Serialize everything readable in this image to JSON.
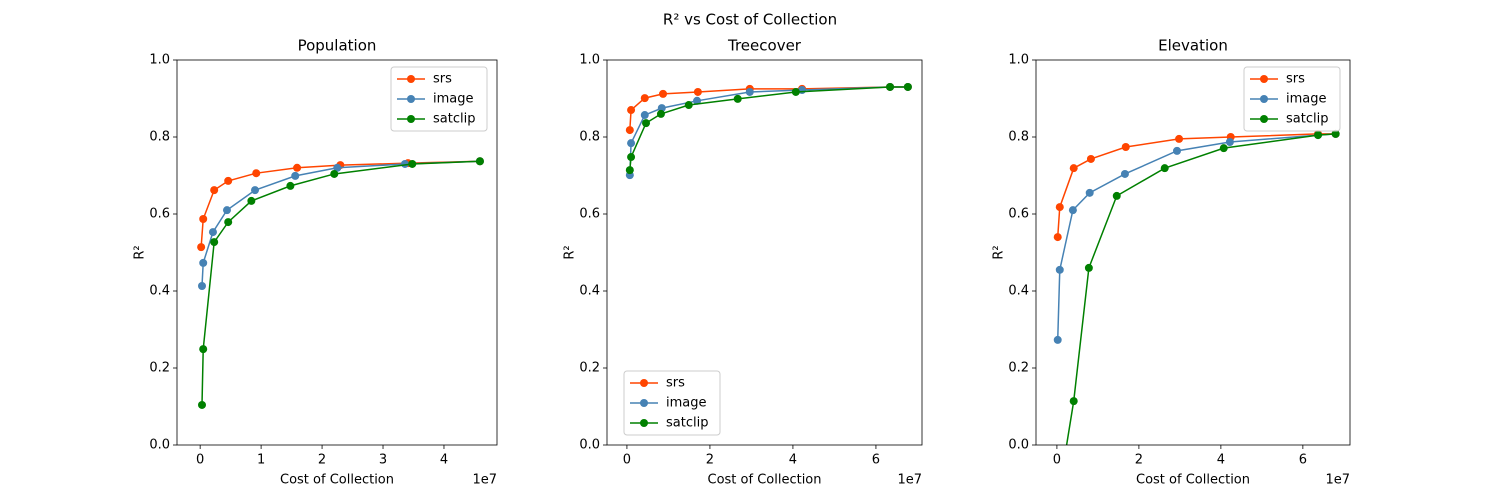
{
  "title": "R² vs Cost of Collection",
  "chart_data": [
    {
      "type": "line",
      "title": "Population",
      "xlabel": "Cost of Collection",
      "ylabel": "R²",
      "x_offset_label": "1e7",
      "xlim": [
        -0.38,
        4.87
      ],
      "ylim": [
        0,
        1
      ],
      "xticks": [
        0,
        1,
        2,
        3,
        4
      ],
      "yticks": [
        {
          "value": 0,
          "label": "0.0"
        },
        {
          "value": 0.2,
          "label": "0.2"
        },
        {
          "value": 0.4,
          "label": "0.4"
        },
        {
          "value": 0.6,
          "label": "0.6"
        },
        {
          "value": 0.8,
          "label": "0.8"
        },
        {
          "value": 1,
          "label": "1.0"
        }
      ],
      "legend": "upper right",
      "series": [
        {
          "name": "srs",
          "color": "#ff4500",
          "x": [
            0.016,
            0.05,
            0.23,
            0.46,
            0.92,
            1.59,
            2.3,
            3.41,
            4.59
          ],
          "values": [
            0.514,
            0.587,
            0.662,
            0.686,
            0.706,
            0.72,
            0.727,
            0.732,
            0.737
          ]
        },
        {
          "name": "image",
          "color": "#4682b4",
          "x": [
            0.03,
            0.05,
            0.21,
            0.44,
            0.9,
            1.56,
            2.25,
            3.36,
            4.59
          ],
          "values": [
            0.413,
            0.473,
            0.553,
            0.61,
            0.662,
            0.699,
            0.72,
            0.73,
            0.737
          ]
        },
        {
          "name": "satclip",
          "color": "#008000",
          "x": [
            0.03,
            0.05,
            0.23,
            0.46,
            0.84,
            1.48,
            2.2,
            3.48,
            4.59
          ],
          "values": [
            0.104,
            0.249,
            0.527,
            0.579,
            0.634,
            0.673,
            0.704,
            0.73,
            0.737
          ]
        }
      ]
    },
    {
      "type": "line",
      "title": "Treecover",
      "xlabel": "Cost of Collection",
      "ylabel": "R²",
      "x_offset_label": "1e7",
      "xlim": [
        -0.48,
        7.11
      ],
      "ylim": [
        0,
        1
      ],
      "xticks": [
        0,
        2,
        4,
        6
      ],
      "yticks": [
        {
          "value": 0,
          "label": "0.0"
        },
        {
          "value": 0.2,
          "label": "0.2"
        },
        {
          "value": 0.4,
          "label": "0.4"
        },
        {
          "value": 0.6,
          "label": "0.6"
        },
        {
          "value": 0.8,
          "label": "0.8"
        },
        {
          "value": 1,
          "label": "1.0"
        }
      ],
      "legend": "lower left",
      "series": [
        {
          "name": "srs",
          "color": "#ff4500",
          "x": [
            0.07,
            0.1,
            0.43,
            0.87,
            1.71,
            2.96,
            4.22,
            6.34,
            6.77
          ],
          "values": [
            0.818,
            0.87,
            0.901,
            0.912,
            0.917,
            0.925,
            0.925,
            0.93,
            0.93
          ]
        },
        {
          "name": "image",
          "color": "#4682b4",
          "x": [
            0.07,
            0.1,
            0.43,
            0.84,
            1.69,
            2.96,
            4.22,
            6.34,
            6.77
          ],
          "values": [
            0.701,
            0.784,
            0.857,
            0.875,
            0.894,
            0.917,
            0.922,
            0.93,
            0.93
          ]
        },
        {
          "name": "satclip",
          "color": "#008000",
          "x": [
            0.07,
            0.1,
            0.46,
            0.82,
            1.49,
            2.67,
            4.07,
            6.34,
            6.77
          ],
          "values": [
            0.714,
            0.748,
            0.836,
            0.86,
            0.883,
            0.899,
            0.917,
            0.93,
            0.93
          ]
        }
      ]
    },
    {
      "type": "line",
      "title": "Elevation",
      "xlabel": "Cost of Collection",
      "ylabel": "R²",
      "x_offset_label": "1e7",
      "xlim": [
        -0.51,
        7.15
      ],
      "ylim": [
        0,
        1
      ],
      "xticks": [
        0,
        2,
        4,
        6
      ],
      "yticks": [
        {
          "value": 0,
          "label": "0.0"
        },
        {
          "value": 0.2,
          "label": "0.2"
        },
        {
          "value": 0.4,
          "label": "0.4"
        },
        {
          "value": 0.6,
          "label": "0.6"
        },
        {
          "value": 0.8,
          "label": "0.8"
        },
        {
          "value": 1,
          "label": "1.0"
        }
      ],
      "legend": "upper right",
      "series": [
        {
          "name": "srs",
          "color": "#ff4500",
          "x": [
            0.02,
            0.07,
            0.41,
            0.83,
            1.68,
            2.98,
            4.24,
            6.37,
            6.8
          ],
          "values": [
            0.54,
            0.618,
            0.719,
            0.743,
            0.774,
            0.795,
            0.8,
            0.808,
            0.808
          ]
        },
        {
          "name": "image",
          "color": "#4682b4",
          "x": [
            0.02,
            0.07,
            0.39,
            0.8,
            1.66,
            2.93,
            4.22,
            6.37,
            6.8
          ],
          "values": [
            0.273,
            0.455,
            0.61,
            0.655,
            0.704,
            0.764,
            0.787,
            0.805,
            0.808
          ]
        },
        {
          "name": "satclip",
          "color": "#008000",
          "x": [
            0.07,
            0.41,
            0.78,
            1.46,
            2.63,
            4.07,
            6.37,
            6.8
          ],
          "values": [
            -0.11,
            0.114,
            0.46,
            0.647,
            0.719,
            0.771,
            0.805,
            0.808
          ]
        }
      ]
    }
  ]
}
